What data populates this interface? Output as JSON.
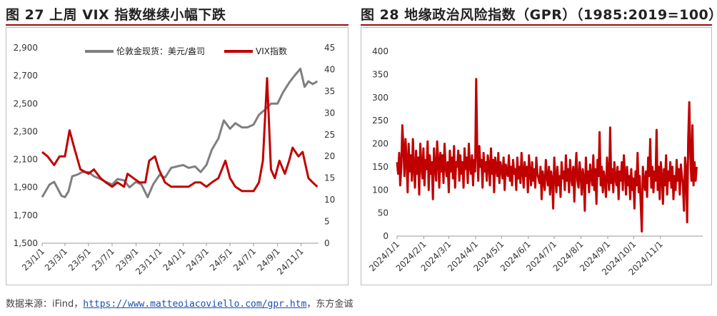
{
  "figure1": {
    "title": "图 27 上周 VIX 指数继续小幅下跌"
  },
  "figure2": {
    "title": "图 28 地缘政治风险指数（GPR）（1985:2019=100）"
  },
  "source": {
    "prefix": "数据来源：iFind，",
    "link": "https://www.matteoiacoviello.com/gpr.htm",
    "suffix": "，东方金诚"
  },
  "colors": {
    "gold_series": "#7f7f7f",
    "vix_series": "#c00000",
    "gpr_series": "#c00000",
    "accent_rule": "#9a0a0a"
  },
  "chart_data": [
    {
      "type": "line",
      "x_tick_labels": [
        "23/1/1",
        "23/3/1",
        "23/5/1",
        "23/7/1",
        "23/9/1",
        "23/11/1",
        "24/1/1",
        "24/3/1",
        "24/5/1",
        "24/7/1",
        "24/9/1",
        "24/11/1"
      ],
      "y_left": {
        "ticks": [
          "1,500",
          "1,700",
          "1,900",
          "2,100",
          "2,300",
          "2,500",
          "2,700",
          "2,900"
        ],
        "ylim": [
          1500,
          2900
        ]
      },
      "y_right": {
        "ticks": [
          "0",
          "5",
          "10",
          "15",
          "20",
          "25",
          "30",
          "35",
          "40",
          "45"
        ],
        "ylim": [
          0,
          45
        ]
      },
      "legend_position": "top",
      "grid": false,
      "series": [
        {
          "name": "伦敦金现货：美元/盎司",
          "axis": "left",
          "x": [
            "2023-01-01",
            "2023-01-20",
            "2023-02-01",
            "2023-02-20",
            "2023-03-01",
            "2023-03-10",
            "2023-03-20",
            "2023-04-01",
            "2023-04-15",
            "2023-05-01",
            "2023-05-15",
            "2023-06-01",
            "2023-06-15",
            "2023-07-01",
            "2023-07-15",
            "2023-08-01",
            "2023-08-15",
            "2023-09-01",
            "2023-09-15",
            "2023-10-01",
            "2023-10-15",
            "2023-11-01",
            "2023-11-15",
            "2023-12-01",
            "2023-12-15",
            "2024-01-01",
            "2024-01-15",
            "2024-02-01",
            "2024-02-15",
            "2024-03-01",
            "2024-03-15",
            "2024-04-01",
            "2024-04-15",
            "2024-05-01",
            "2024-05-15",
            "2024-06-01",
            "2024-06-15",
            "2024-07-01",
            "2024-07-15",
            "2024-08-01",
            "2024-08-15",
            "2024-09-01",
            "2024-09-15",
            "2024-10-01",
            "2024-10-15",
            "2024-10-30",
            "2024-11-10",
            "2024-11-20",
            "2024-12-01",
            "2024-12-13"
          ],
          "values": [
            1830,
            1920,
            1940,
            1840,
            1830,
            1870,
            1980,
            1990,
            2010,
            2010,
            1980,
            1960,
            1940,
            1920,
            1960,
            1950,
            1900,
            1940,
            1920,
            1830,
            1920,
            1990,
            1970,
            2040,
            2050,
            2060,
            2040,
            2050,
            2010,
            2060,
            2170,
            2250,
            2380,
            2320,
            2360,
            2330,
            2330,
            2350,
            2420,
            2460,
            2500,
            2500,
            2580,
            2650,
            2700,
            2750,
            2620,
            2660,
            2640,
            2660
          ]
        },
        {
          "name": "VIX指数",
          "axis": "right",
          "x": [
            "2023-01-01",
            "2023-01-15",
            "2023-02-01",
            "2023-02-15",
            "2023-03-01",
            "2023-03-13",
            "2023-03-25",
            "2023-04-10",
            "2023-05-01",
            "2023-05-15",
            "2023-06-01",
            "2023-06-15",
            "2023-07-01",
            "2023-07-15",
            "2023-08-01",
            "2023-08-10",
            "2023-08-25",
            "2023-09-10",
            "2023-09-25",
            "2023-10-05",
            "2023-10-20",
            "2023-10-30",
            "2023-11-15",
            "2023-12-01",
            "2023-12-15",
            "2024-01-01",
            "2024-01-15",
            "2024-02-01",
            "2024-02-15",
            "2024-03-01",
            "2024-03-15",
            "2024-04-01",
            "2024-04-19",
            "2024-05-01",
            "2024-05-15",
            "2024-06-01",
            "2024-06-15",
            "2024-07-01",
            "2024-07-15",
            "2024-07-25",
            "2024-08-05",
            "2024-08-15",
            "2024-08-25",
            "2024-09-06",
            "2024-09-20",
            "2024-10-01",
            "2024-10-10",
            "2024-10-25",
            "2024-11-05",
            "2024-11-20",
            "2024-12-01",
            "2024-12-13"
          ],
          "values": [
            21,
            20,
            18,
            20,
            20,
            26,
            22,
            17,
            16,
            17,
            15,
            14,
            13,
            14,
            13,
            16,
            15,
            14,
            14,
            19,
            20,
            17,
            14,
            13,
            13,
            13,
            13,
            14,
            14,
            13,
            14,
            15,
            19,
            15,
            13,
            12,
            12,
            12,
            14,
            19,
            38,
            17,
            15,
            19,
            16,
            19,
            22,
            20,
            21,
            15,
            14,
            13
          ]
        }
      ]
    },
    {
      "type": "line",
      "x_tick_labels": [
        "2024/1/1",
        "2024/2/1",
        "2024/3/1",
        "2024/4/1",
        "2024/5/1",
        "2024/6/1",
        "2024/7/1",
        "2024/8/1",
        "2024/9/1",
        "2024/10/1",
        "2024/11/1"
      ],
      "y": {
        "ticks": [
          "0",
          "50",
          "100",
          "150",
          "200",
          "250",
          "300",
          "350",
          "400"
        ],
        "ylim": [
          0,
          400
        ]
      },
      "grid": false,
      "series": [
        {
          "name": "GPR",
          "x_start": "2024-01-01",
          "x_end": "2024-12-13",
          "values": [
            160,
            135,
            180,
            110,
            150,
            240,
            190,
            130,
            210,
            165,
            95,
            200,
            140,
            175,
            120,
            210,
            150,
            105,
            185,
            135,
            170,
            90,
            200,
            155,
            125,
            190,
            110,
            165,
            145,
            205,
            100,
            175,
            135,
            160,
            80,
            190,
            150,
            120,
            205,
            165,
            105,
            180,
            140,
            175,
            115,
            200,
            150,
            130,
            160,
            95,
            185,
            140,
            170,
            125,
            195,
            105,
            160,
            150,
            185,
            120,
            175,
            135,
            160,
            105,
            190,
            145,
            170,
            115,
            200,
            150,
            135,
            175,
            110,
            165,
            140,
            340,
            180,
            120,
            195,
            150,
            165,
            105,
            180,
            140,
            160,
            120,
            175,
            155,
            110,
            190,
            135,
            165,
            95,
            170,
            150,
            130,
            180,
            115,
            160,
            145,
            125,
            170,
            100,
            155,
            140,
            130,
            175,
            120,
            150,
            110,
            165,
            135,
            145,
            100,
            170,
            125,
            150,
            115,
            180,
            140,
            105,
            160,
            130,
            150,
            95,
            175,
            140,
            110,
            160,
            120,
            145,
            105,
            170,
            135,
            125,
            115,
            150,
            80,
            140,
            120,
            100,
            165,
            130,
            110,
            150,
            90,
            140,
            120,
            60,
            170,
            130,
            95,
            150,
            110,
            130,
            85,
            160,
            125,
            140,
            100,
            175,
            120,
            145,
            95,
            165,
            130,
            110,
            150,
            75,
            140,
            180,
            120,
            105,
            160,
            135,
            90,
            145,
            125,
            55,
            170,
            115,
            140,
            95,
            155,
            130,
            110,
            175,
            100,
            145,
            70,
            165,
            130,
            225,
            110,
            150,
            95,
            140,
            120,
            85,
            170,
            130,
            100,
            235,
            115,
            145,
            95,
            160,
            125,
            110,
            150,
            80,
            140,
            120,
            160,
            100,
            175,
            135,
            90,
            150,
            110,
            130,
            80,
            145,
            100,
            125,
            60,
            140,
            110,
            180,
            95,
            130,
            70,
            10,
            150,
            120,
            100,
            140,
            85,
            170,
            130,
            210,
            105,
            150,
            95,
            140,
            120,
            230,
            100,
            150,
            80,
            160,
            130,
            70,
            145,
            110,
            175,
            90,
            140,
            120,
            160,
            105,
            150,
            80,
            130,
            100,
            165,
            120,
            145,
            90,
            155,
            130,
            110,
            55,
            170,
            140,
            30,
            210,
            290,
            170,
            120,
            240,
            110,
            160,
            120,
            150
          ]
        }
      ]
    }
  ]
}
